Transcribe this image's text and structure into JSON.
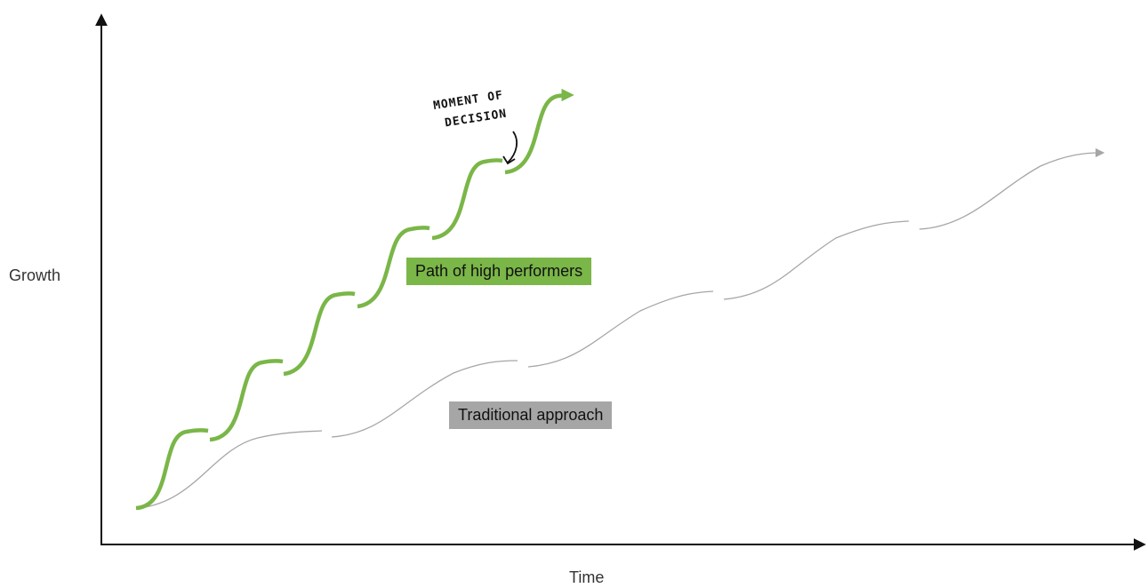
{
  "axes": {
    "y_label": "Growth",
    "x_label": "Time"
  },
  "labels": {
    "high_performers": "Path of high performers",
    "traditional": "Traditional approach"
  },
  "annotation": {
    "line1": "MOMENT OF",
    "line2": "DECISION"
  },
  "colors": {
    "high_performers": "#7ab648",
    "traditional": "#a6a6a6",
    "axes": "#111111"
  }
}
